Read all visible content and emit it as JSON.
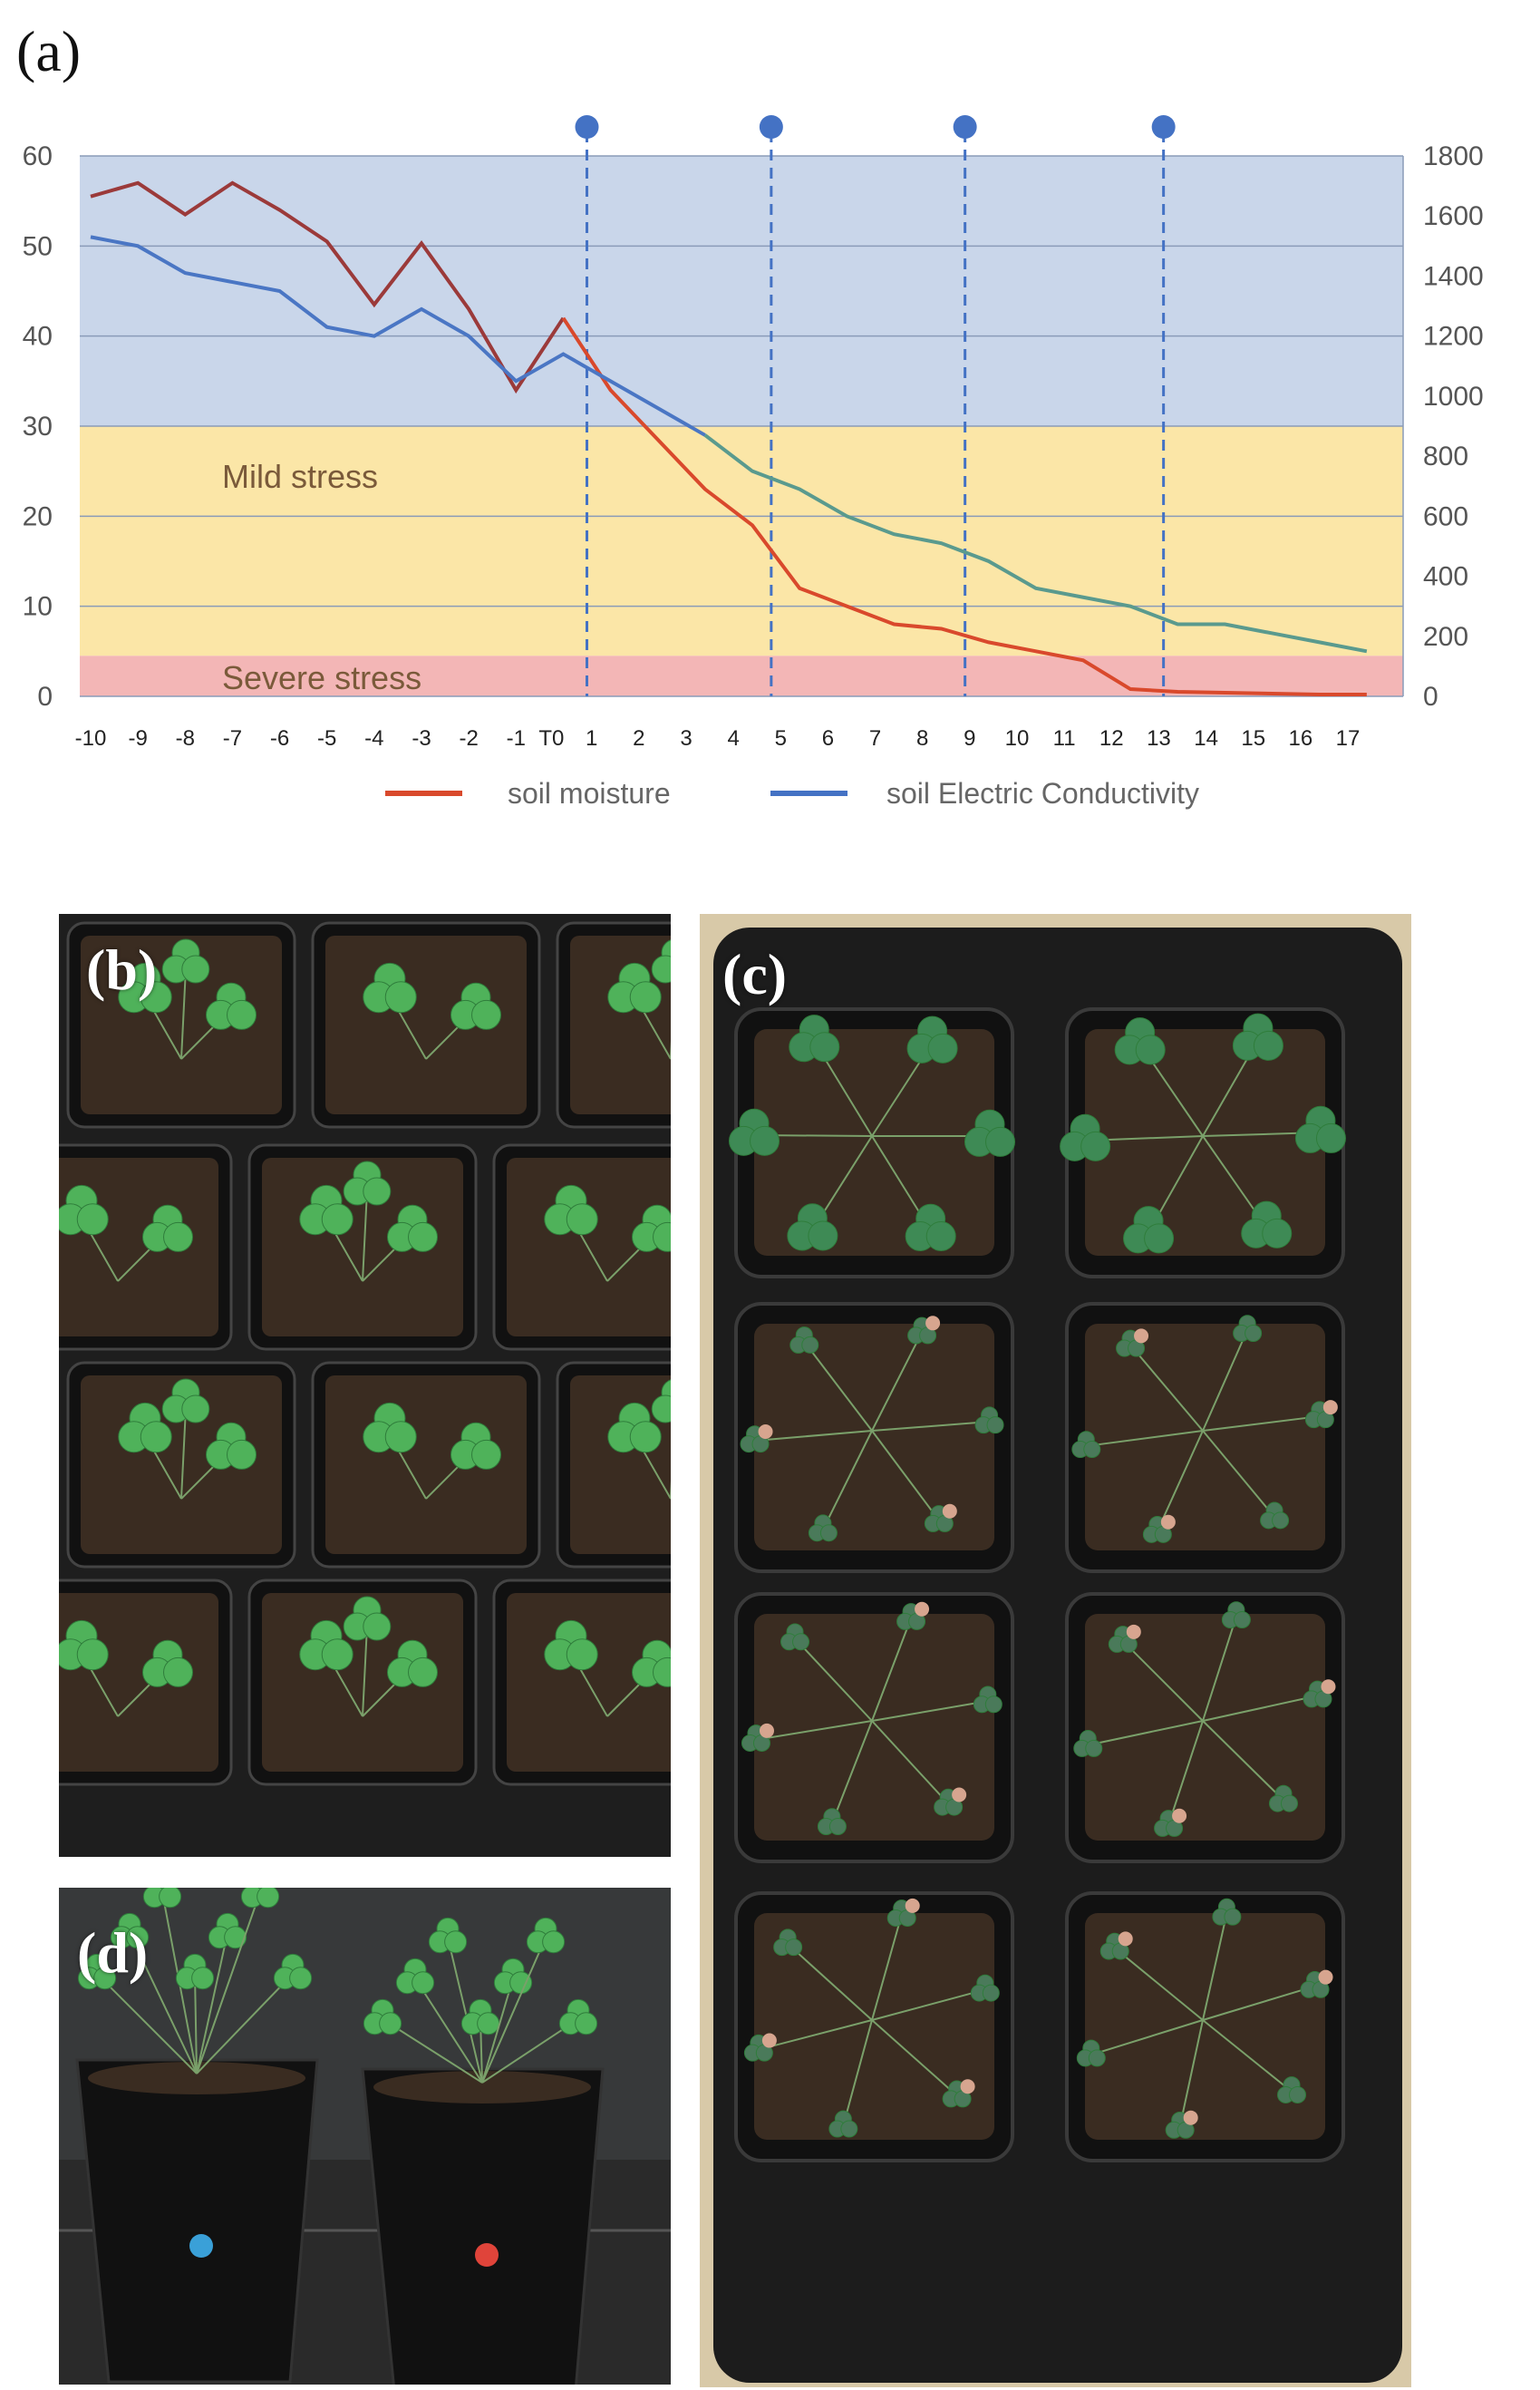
{
  "panel_labels": {
    "a": "(a)",
    "b": "(b)",
    "c": "(c)",
    "d": "(d)"
  },
  "chart_data": {
    "type": "line",
    "title": "",
    "xlabel": "",
    "ylabel": "",
    "x_tick_labels": [
      "-10",
      "-9",
      "-8",
      "-7",
      "-6",
      "-5",
      "-4",
      "-3",
      "-2",
      "-1",
      "T0",
      "1",
      "2",
      "3",
      "4",
      "5",
      "6",
      "7",
      "8",
      "9",
      "10",
      "11",
      "12",
      "13",
      "14",
      "15",
      "16",
      "17"
    ],
    "ylim_left": [
      0,
      60
    ],
    "yticks_left": [
      0,
      10,
      20,
      30,
      40,
      50,
      60
    ],
    "ylim_right": [
      0,
      1800
    ],
    "yticks_right": [
      0,
      200,
      400,
      600,
      800,
      1000,
      1200,
      1400,
      1600,
      1800
    ],
    "grid": true,
    "zones": [
      {
        "label": "",
        "from": 30,
        "to": 60,
        "color": "#c9d6ea"
      },
      {
        "label": "Mild stress",
        "from": 4.5,
        "to": 30,
        "color": "#fbe6a7"
      },
      {
        "label": "Severe stress",
        "from": 0,
        "to": 4.5,
        "color": "#f3b6b6"
      }
    ],
    "markers_x": [
      0.5,
      4.4,
      8.5,
      12.7
    ],
    "marker_color": "#4472c4",
    "series": [
      {
        "name": "soil moisture",
        "axis": "left",
        "color": "#c0392b",
        "x": [
          -10,
          -9,
          -8,
          -7,
          -6,
          -5,
          -4,
          -3,
          -2,
          -1,
          0,
          1,
          2,
          3,
          4,
          5,
          6,
          7,
          8,
          9,
          10,
          11,
          12,
          13,
          14,
          15,
          16,
          17
        ],
        "values": [
          55.5,
          57,
          53.5,
          57,
          54,
          50.5,
          43.5,
          50.3,
          43,
          34,
          42,
          34,
          28.5,
          23,
          19,
          12,
          10,
          8,
          7.5,
          6,
          5,
          4,
          0.8,
          0.5,
          0.4,
          0.3,
          0.2,
          0.2
        ]
      },
      {
        "name": "soil Electric Conductivity",
        "axis": "left",
        "color": "#4472c4",
        "x": [
          -10,
          -9,
          -8,
          -7,
          -6,
          -5,
          -4,
          -3,
          -2,
          -1,
          0,
          1,
          2,
          3,
          4,
          5,
          6,
          7,
          8,
          9,
          10,
          11,
          12,
          13,
          14,
          15,
          16,
          17
        ],
        "values": [
          51,
          50,
          47,
          46,
          45,
          41,
          40,
          43,
          40,
          35,
          38,
          35,
          32,
          29,
          25,
          23,
          20,
          18,
          17,
          15,
          12,
          11,
          10,
          8,
          8,
          7,
          6,
          5
        ]
      }
    ],
    "legend_position": "bottom"
  },
  "photo_colors": {
    "tray": "#1c1c1c",
    "soil": "#3a2c21",
    "leaf": "#4fb25a",
    "leaf_dry": "#3e8a55",
    "dry_leaf": "#d7a58f",
    "pot": "#111111",
    "wall": "#37393a",
    "dot_blue": "#3aa0d8",
    "dot_red": "#e0443a"
  }
}
